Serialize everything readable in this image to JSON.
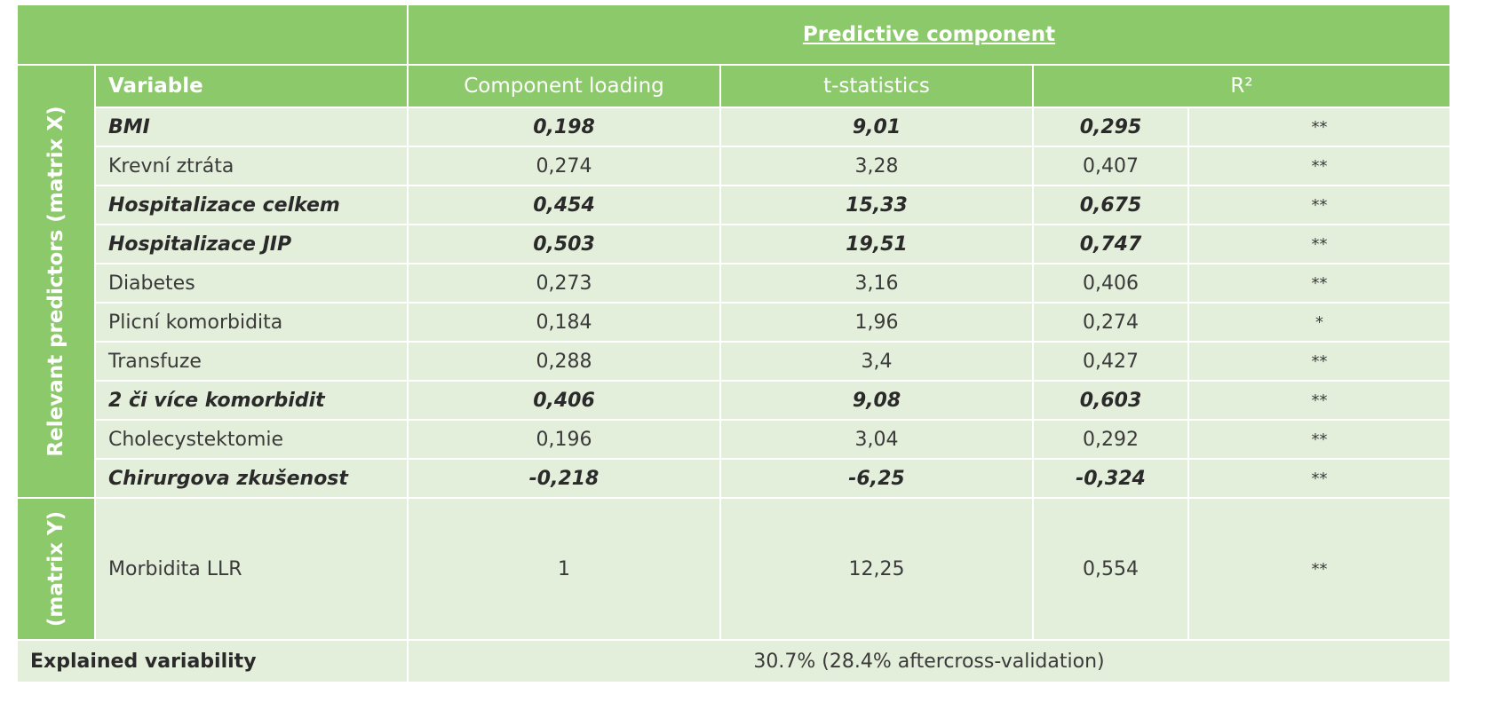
{
  "header": {
    "predictive_component": "Predictive component",
    "variable": "Variable",
    "component_loading": "Component loading",
    "t_statistics": "t-statistics",
    "r2": "R²"
  },
  "groups": {
    "x_label": "Relevant predictors (matrix X)",
    "y_label": "(matrix Y)"
  },
  "rows": [
    {
      "name": "BMI",
      "loading": "0,198",
      "t": "9,01",
      "r2": "0,295",
      "sig": "**",
      "bold": true
    },
    {
      "name": "Krevní ztráta",
      "loading": "0,274",
      "t": "3,28",
      "r2": "0,407",
      "sig": "**",
      "bold": false
    },
    {
      "name": "Hospitalizace celkem",
      "loading": "0,454",
      "t": "15,33",
      "r2": "0,675",
      "sig": "**",
      "bold": true
    },
    {
      "name": "Hospitalizace JIP",
      "loading": "0,503",
      "t": "19,51",
      "r2": "0,747",
      "sig": "**",
      "bold": true
    },
    {
      "name": "Diabetes",
      "loading": "0,273",
      "t": "3,16",
      "r2": "0,406",
      "sig": "**",
      "bold": false
    },
    {
      "name": "Plicní komorbidita",
      "loading": "0,184",
      "t": "1,96",
      "r2": "0,274",
      "sig": "*",
      "bold": false
    },
    {
      "name": "Transfuze",
      "loading": "0,288",
      "t": "3,4",
      "r2": "0,427",
      "sig": "**",
      "bold": false
    },
    {
      "name": "2 či více komorbidit",
      "loading": "0,406",
      "t": "9,08",
      "r2": "0,603",
      "sig": "**",
      "bold": true
    },
    {
      "name": "Cholecystektomie",
      "loading": "0,196",
      "t": "3,04",
      "r2": "0,292",
      "sig": "**",
      "bold": false
    },
    {
      "name": "Chirurgova zkušenost",
      "loading": "-0,218",
      "t": "-6,25",
      "r2": "-0,324",
      "sig": "**",
      "bold": true
    }
  ],
  "y_row": {
    "name": "Morbidita LLR",
    "loading": "1",
    "t": "12,25",
    "r2": "0,554",
    "sig": "**"
  },
  "footer": {
    "label": "Explained variability",
    "value": "30.7% (28.4% aftercross-validation)"
  },
  "colors": {
    "header_green": "#8cc96b",
    "cell_light": "#e4efdb"
  }
}
